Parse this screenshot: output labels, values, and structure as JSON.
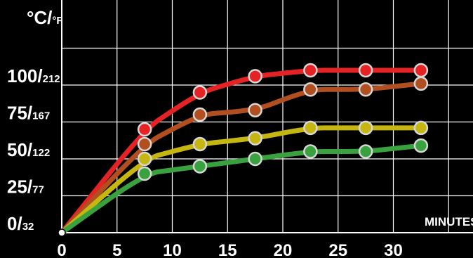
{
  "chart_data": {
    "type": "line",
    "ylabel_main": "°C/",
    "ylabel_unit": "°F",
    "xlabel": "MINUTES",
    "x_ticks": [
      "0",
      "5",
      "10",
      "15",
      "20",
      "25",
      "30"
    ],
    "y_ticks": [
      {
        "c": "0/",
        "f": "32"
      },
      {
        "c": "25/",
        "f": "77"
      },
      {
        "c": "50/",
        "f": "122"
      },
      {
        "c": "75/",
        "f": "167"
      },
      {
        "c": "100/",
        "f": "212"
      }
    ],
    "xlim": [
      0,
      35
    ],
    "ylim": [
      0,
      140
    ],
    "grid": true,
    "series": [
      {
        "color": "#e52325",
        "x": [
          0,
          7.5,
          12.5,
          17.5,
          22.5,
          27.5,
          32.5
        ],
        "y": [
          0,
          70,
          95,
          106,
          110,
          110,
          110
        ]
      },
      {
        "color": "#b14f21",
        "x": [
          0,
          7.5,
          12.5,
          17.5,
          22.5,
          27.5,
          32.5
        ],
        "y": [
          0,
          60,
          80,
          83,
          97,
          97,
          101
        ]
      },
      {
        "color": "#c5b611",
        "x": [
          0,
          7.5,
          12.5,
          17.5,
          22.5,
          27.5,
          32.5
        ],
        "y": [
          0,
          50,
          60,
          64,
          71,
          71,
          71
        ]
      },
      {
        "color": "#39a23e",
        "x": [
          0,
          7.5,
          12.5,
          17.5,
          22.5,
          27.5,
          32.5
        ],
        "y": [
          0,
          40,
          45,
          50,
          55,
          55,
          59
        ]
      }
    ]
  }
}
